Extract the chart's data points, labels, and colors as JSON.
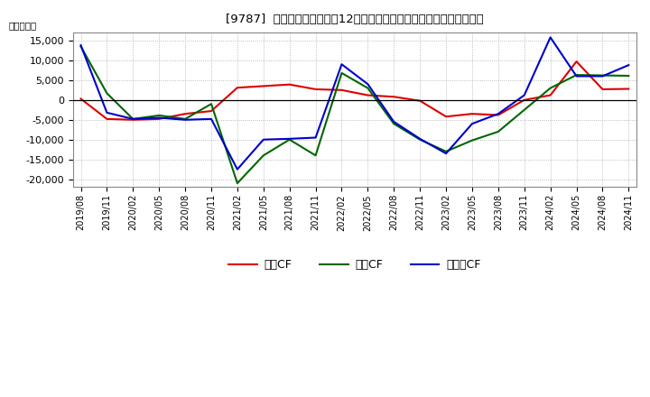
{
  "title": "[9787]  キャッシュフローの12か月移動合計の対前年同期増減額の推移",
  "ylabel": "（百万円）",
  "background_color": "#ffffff",
  "plot_bg_color": "#ffffff",
  "grid_color": "#aaaaaa",
  "x_labels": [
    "2019/08",
    "2019/11",
    "2020/02",
    "2020/05",
    "2020/08",
    "2020/11",
    "2021/02",
    "2021/05",
    "2021/08",
    "2021/11",
    "2022/02",
    "2022/05",
    "2022/08",
    "2022/11",
    "2023/02",
    "2023/05",
    "2023/08",
    "2023/11",
    "2024/02",
    "2024/05",
    "2024/08",
    "2024/11"
  ],
  "operating_cf": [
    300,
    -4800,
    -5000,
    -4800,
    -3500,
    -2800,
    3100,
    3500,
    3900,
    2700,
    2500,
    1200,
    800,
    -200,
    -4200,
    -3500,
    -3800,
    0,
    1200,
    9700,
    2700,
    2800
  ],
  "investing_cf": [
    13500,
    1700,
    -4800,
    -3900,
    -4800,
    -1000,
    -21000,
    -14000,
    -10000,
    -14000,
    6800,
    3000,
    -6000,
    -10000,
    -13000,
    -10200,
    -8000,
    -2500,
    3000,
    6300,
    6200,
    6100
  ],
  "free_cf": [
    13800,
    -3200,
    -4800,
    -4500,
    -5000,
    -4800,
    -17500,
    -10000,
    -9800,
    -9500,
    9000,
    4000,
    -5500,
    -9800,
    -13500,
    -6000,
    -3500,
    1200,
    15800,
    6000,
    6000,
    8800
  ],
  "operating_color": "#dd0000",
  "investing_color": "#006600",
  "free_color": "#0000cc",
  "ylim": [
    -22000,
    17000
  ],
  "yticks": [
    -20000,
    -15000,
    -10000,
    -5000,
    0,
    5000,
    10000,
    15000
  ],
  "legend_labels": [
    "営業CF",
    "投資CF",
    "フリーCF"
  ]
}
